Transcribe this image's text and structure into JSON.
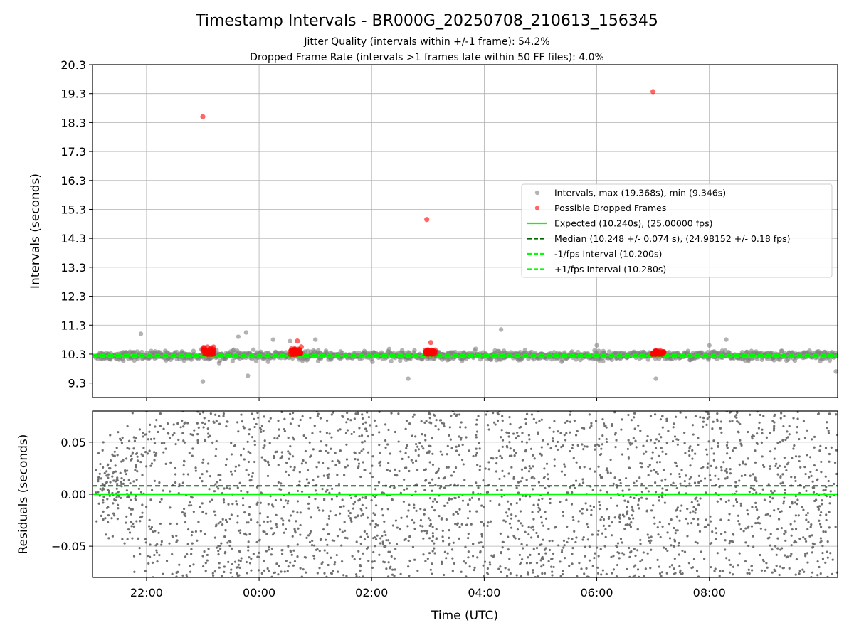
{
  "chart_data": [
    {
      "type": "scatter",
      "title": "Timestamp Intervals - BR000G_20250708_210613_156345",
      "subtitle_lines": [
        "Jitter Quality (intervals within +/-1 frame): 54.2%",
        "Dropped Frame Rate (intervals >1 frames late within 50 FF files): 4.0%"
      ],
      "ylabel": "Intervals (seconds)",
      "xlabel": "",
      "x_unit": "hours since 00:00 UTC (2025-07-09); negative = 2025-07-08",
      "xlim": [
        -2.96,
        10.28
      ],
      "ylim": [
        8.8,
        20.3
      ],
      "yticks": [
        9.3,
        10.3,
        11.3,
        12.3,
        13.3,
        14.3,
        15.3,
        16.3,
        17.3,
        18.3,
        19.3,
        20.3
      ],
      "ytick_labels": [
        "9.3",
        "10.3",
        "11.3",
        "12.3",
        "13.3",
        "14.3",
        "15.3",
        "16.3",
        "17.3",
        "18.3",
        "19.3",
        "20.3"
      ],
      "grid": true,
      "legend_position": "right, middle",
      "legend": [
        "Intervals, max (19.368s), min (9.346s)",
        "Possible Dropped Frames",
        "Expected (10.240s), (25.00000 fps)",
        "Median (10.248 +/- 0.074 s), (24.98152 +/- 0.18 fps)",
        "-1/fps Interval (10.200s)",
        "+1/fps Interval (10.280s)"
      ],
      "series": [
        {
          "name": "Intervals, max (19.368s), min (9.346s)",
          "color": "#808080",
          "x_range": [
            -2.9,
            10.28
          ],
          "center": 10.248,
          "spread": 0.074,
          "outliers": [
            {
              "x": -2.1,
              "y": 11.0
            },
            {
              "x": -1.0,
              "y": 9.35
            },
            {
              "x": -0.37,
              "y": 10.9
            },
            {
              "x": -0.23,
              "y": 11.05
            },
            {
              "x": -0.2,
              "y": 9.55
            },
            {
              "x": 0.25,
              "y": 10.8
            },
            {
              "x": 0.55,
              "y": 10.75
            },
            {
              "x": 1.0,
              "y": 10.8
            },
            {
              "x": 2.65,
              "y": 9.45
            },
            {
              "x": 4.3,
              "y": 11.15
            },
            {
              "x": 6.0,
              "y": 10.6
            },
            {
              "x": 7.05,
              "y": 9.45
            },
            {
              "x": 8.0,
              "y": 10.6
            },
            {
              "x": 8.3,
              "y": 10.8
            },
            {
              "x": 10.25,
              "y": 9.7
            }
          ]
        },
        {
          "name": "Possible Dropped Frames",
          "color": "#ff0000",
          "points": [
            {
              "x": -1.0,
              "y": 18.5
            },
            {
              "x": 2.98,
              "y": 14.95
            },
            {
              "x": 7.0,
              "y": 19.368
            },
            {
              "x": 0.68,
              "y": 10.75
            },
            {
              "x": 0.75,
              "y": 10.55
            },
            {
              "x": 3.05,
              "y": 10.7
            }
          ],
          "clusters": [
            {
              "x_range": [
                -1.0,
                -0.8
              ],
              "y_range": [
                10.28,
                10.55
              ]
            },
            {
              "x_range": [
                0.55,
                0.75
              ],
              "y_range": [
                10.28,
                10.5
              ]
            },
            {
              "x_range": [
                2.95,
                3.15
              ],
              "y_range": [
                10.28,
                10.45
              ]
            },
            {
              "x_range": [
                6.98,
                7.2
              ],
              "y_range": [
                10.28,
                10.42
              ]
            }
          ]
        },
        {
          "name": "Expected (10.240s), (25.00000 fps)",
          "kind": "hline",
          "y": 10.24,
          "color": "#00ff00",
          "style": "solid"
        },
        {
          "name": "Median (10.248 +/- 0.074 s), (24.98152 +/- 0.18 fps)",
          "kind": "hline",
          "y": 10.248,
          "color": "#006400",
          "style": "dashed"
        },
        {
          "name": "-1/fps Interval (10.200s)",
          "kind": "hline",
          "y": 10.2,
          "color": "#00ff00",
          "style": "dashed"
        },
        {
          "name": "+1/fps Interval (10.280s)",
          "kind": "hline",
          "y": 10.28,
          "color": "#00ff00",
          "style": "dashed"
        }
      ]
    },
    {
      "type": "scatter",
      "title": "",
      "ylabel": "Residuals (seconds)",
      "xlabel": "Time (UTC)",
      "xlim": [
        -2.96,
        10.28
      ],
      "ylim": [
        -0.08,
        0.08
      ],
      "yticks": [
        -0.05,
        0.0,
        0.05
      ],
      "ytick_labels": [
        "−0.05",
        "0.00",
        "0.05"
      ],
      "xticks": [
        -2,
        0,
        2,
        4,
        6,
        8
      ],
      "xtick_labels": [
        "22:00",
        "00:00",
        "02:00",
        "04:00",
        "06:00",
        "08:00"
      ],
      "grid": true,
      "series": [
        {
          "name": "residuals",
          "color": "#707070",
          "x_range": [
            -2.9,
            10.28
          ],
          "y_range": [
            -0.08,
            0.08
          ]
        },
        {
          "name": "expected",
          "kind": "hline",
          "y": 0.0,
          "color": "#00ff00",
          "style": "solid"
        },
        {
          "name": "median",
          "kind": "hline",
          "y": 0.008,
          "color": "#006400",
          "style": "dashed"
        }
      ]
    }
  ]
}
